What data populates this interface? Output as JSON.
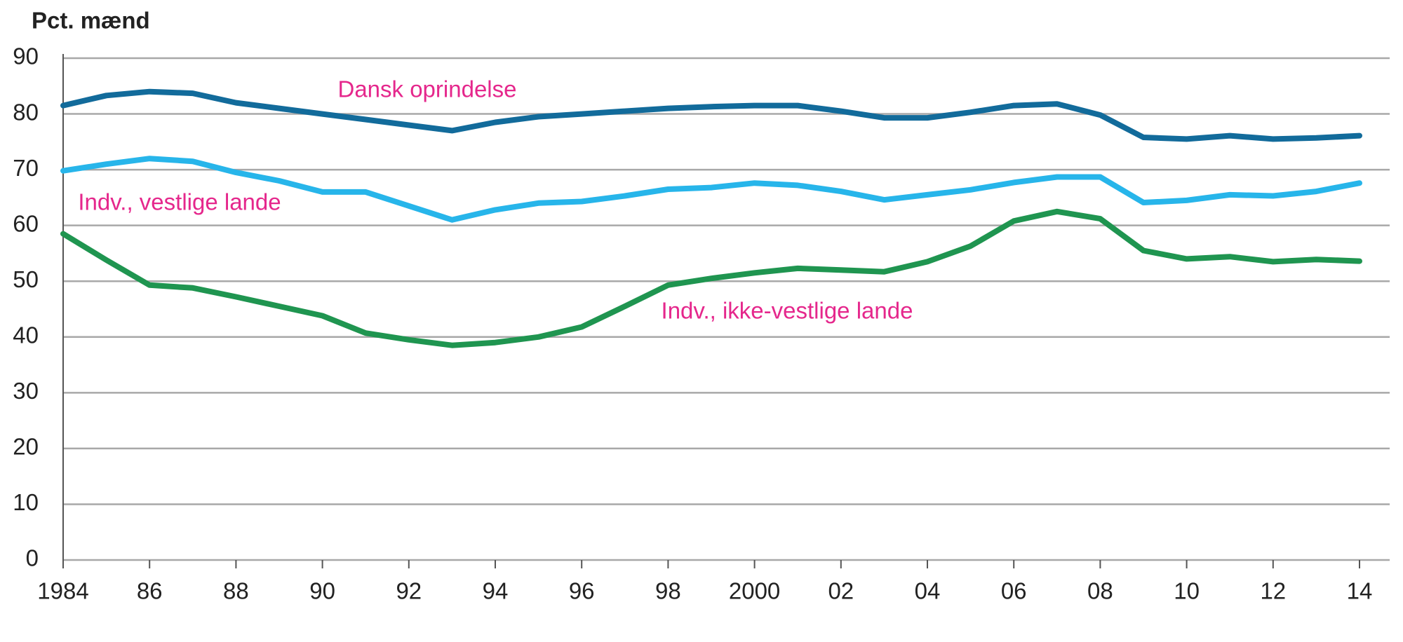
{
  "chart_data": {
    "type": "line",
    "y_label": "Pct. mænd",
    "x": [
      1984,
      1985,
      1986,
      1987,
      1988,
      1989,
      1990,
      1991,
      1992,
      1993,
      1994,
      1995,
      1996,
      1997,
      1998,
      1999,
      2000,
      2001,
      2002,
      2003,
      2004,
      2005,
      2006,
      2007,
      2008,
      2009,
      2010,
      2011,
      2012,
      2013,
      2014
    ],
    "series": [
      {
        "name": "Dansk oprindelse",
        "color": "#126b9b",
        "values": [
          81.5,
          83.3,
          84,
          83.7,
          82,
          81,
          80,
          79,
          78,
          77,
          78.5,
          79.5,
          80,
          80.5,
          81,
          81.3,
          81.5,
          81.5,
          80.5,
          79.3,
          79.3,
          80.3,
          81.5,
          81.8,
          79.8,
          75.8,
          75.5,
          76.1,
          75.5,
          75.7,
          76.1
        ]
      },
      {
        "name": "Indv., vestlige lande",
        "color": "#27b5ea",
        "values": [
          69.8,
          71,
          72,
          71.5,
          69.5,
          68,
          66,
          66,
          63.5,
          61,
          62.8,
          64,
          64.3,
          65.3,
          66.5,
          66.8,
          67.6,
          67.2,
          66.1,
          64.6,
          65.5,
          66.4,
          67.7,
          68.7,
          68.7,
          64.1,
          64.5,
          65.5,
          65.3,
          66.1,
          67.6
        ]
      },
      {
        "name": "Indv., ikke-vestlige lande",
        "color": "#1f9550",
        "values": [
          58.5,
          53.8,
          49.3,
          48.8,
          47.2,
          45.5,
          43.8,
          40.7,
          39.5,
          38.5,
          39,
          40,
          41.8,
          45.5,
          49.3,
          50.5,
          51.5,
          52.3,
          52,
          51.7,
          53.5,
          56.3,
          60.8,
          62.5,
          61.2,
          55.5,
          54,
          54.4,
          53.5,
          53.9,
          53.6
        ]
      }
    ],
    "label_color": "#e5278c",
    "xlim": [
      1984,
      2014
    ],
    "xticks": [
      1984,
      {
        "value": 1986,
        "label": "86"
      },
      {
        "value": 1988,
        "label": "88"
      },
      {
        "value": 1990,
        "label": "90"
      },
      {
        "value": 1992,
        "label": "92"
      },
      {
        "value": 1994,
        "label": "94"
      },
      {
        "value": 1996,
        "label": "96"
      },
      {
        "value": 1998,
        "label": "98"
      },
      2000,
      {
        "value": 2002,
        "label": "02"
      },
      {
        "value": 2004,
        "label": "04"
      },
      {
        "value": 2006,
        "label": "06"
      },
      {
        "value": 2008,
        "label": "08"
      },
      {
        "value": 2010,
        "label": "10"
      },
      {
        "value": 2012,
        "label": "12"
      },
      {
        "value": 2014,
        "label": "14"
      }
    ],
    "ylim": [
      0,
      90
    ],
    "yticks": [
      0,
      10,
      20,
      30,
      40,
      50,
      60,
      70,
      80,
      90
    ],
    "grid": true
  }
}
